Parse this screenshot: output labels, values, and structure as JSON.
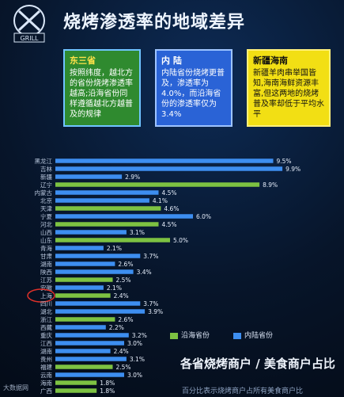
{
  "header": {
    "title": "烧烤渗透率的地域差异",
    "logo_text": "GRILL"
  },
  "panels": [
    {
      "title": "东三省",
      "body": "按照纬度，越北方的省份烧烤渗透率越高;沿海省份同样遵循越北方越普及的规律"
    },
    {
      "title": "内 陆",
      "body": "内陆省份烧烤更普及，渗透率为4.0%，而沿海省份的渗透率仅为3.4%"
    },
    {
      "title": "新疆海南",
      "body": "新疆羊肉串举国皆知,海南海鲜资源丰富,但这两地的烧烤普及率却低于平均水平"
    }
  ],
  "legend": {
    "coastal": "沿海省份",
    "inland": "内陆省份"
  },
  "caption": "各省烧烤商户 / 美食商户占比",
  "subcaption": "百分比表示烧烤商户占所有美食商户比",
  "watermark": "大数据网",
  "colors": {
    "coastal": "#7dc242",
    "inland": "#3d8ef0",
    "highlight_circle": "#e0312a"
  },
  "chart_data": {
    "type": "bar",
    "orientation": "horizontal",
    "categories": [
      "黑龙江",
      "吉林",
      "新疆",
      "辽宁",
      "内蒙古",
      "北京",
      "天津",
      "宁夏",
      "河北",
      "山西",
      "山东",
      "青海",
      "甘肃",
      "湖南",
      "陕西",
      "江苏",
      "安徽",
      "上海",
      "四川",
      "湖北",
      "浙江",
      "西藏",
      "重庆",
      "江西",
      "湖南",
      "贵州",
      "福建",
      "云南",
      "海南",
      "广西"
    ],
    "values": [
      9.5,
      9.9,
      2.9,
      8.9,
      4.5,
      4.1,
      4.6,
      6.0,
      4.5,
      3.1,
      5.0,
      2.1,
      3.7,
      2.6,
      3.4,
      2.5,
      2.1,
      2.4,
      3.7,
      3.9,
      2.6,
      2.2,
      3.2,
      3.0,
      2.4,
      3.1,
      2.5,
      3.0,
      1.8,
      1.8
    ],
    "group": [
      "inland",
      "inland",
      "inland",
      "coastal",
      "inland",
      "inland",
      "coastal",
      "inland",
      "coastal",
      "inland",
      "coastal",
      "inland",
      "inland",
      "inland",
      "inland",
      "coastal",
      "inland",
      "coastal",
      "inland",
      "inland",
      "coastal",
      "inland",
      "inland",
      "inland",
      "inland",
      "inland",
      "coastal",
      "inland",
      "coastal",
      "coastal"
    ],
    "value_labels": [
      "9.5%",
      "9.9%",
      "2.9%",
      "8.9%",
      "4.5%",
      "4.1%",
      "4.6%",
      "6.0%",
      "4.5%",
      "3.1%",
      "5.0%",
      "2.1%",
      "3.7%",
      "2.6%",
      "3.4%",
      "2.5%",
      "2.1%",
      "2.4%",
      "3.7%",
      "3.9%",
      "2.6%",
      "2.2%",
      "3.2%",
      "3.0%",
      "2.4%",
      "3.1%",
      "2.5%",
      "3.0%",
      "1.8%",
      "1.8%"
    ],
    "xlim": [
      0,
      10
    ],
    "highlighted_category": "上海"
  }
}
